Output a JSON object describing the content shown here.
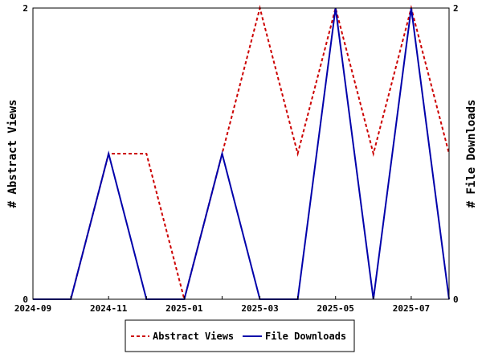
{
  "chart_data": {
    "type": "line",
    "x": [
      "2024-09",
      "2024-10",
      "2024-11",
      "2024-12",
      "2025-01",
      "2025-02",
      "2025-03",
      "2025-04",
      "2025-05",
      "2025-06",
      "2025-07",
      "2025-08"
    ],
    "x_tick_labels": [
      "2024-09",
      "2024-11",
      "2025-01",
      "2025-03",
      "2025-05",
      "2025-07"
    ],
    "series": [
      {
        "name": "Abstract Views",
        "values": [
          0,
          0,
          1,
          1,
          0,
          1,
          2,
          1,
          2,
          1,
          2,
          1
        ],
        "color": "#cc0000",
        "dash": "dashed",
        "axis": "left"
      },
      {
        "name": "File Downloads",
        "values": [
          0,
          0,
          1,
          0,
          0,
          1,
          0,
          0,
          2,
          0,
          2,
          0
        ],
        "color": "#0000aa",
        "dash": "solid",
        "axis": "right"
      }
    ],
    "ylabel_left": "# Abstract Views",
    "ylabel_right": "# File Downloads",
    "ylim": [
      0,
      2
    ],
    "y_ticks": [
      "0",
      "2"
    ],
    "grid": false,
    "legend_position": "bottom"
  }
}
